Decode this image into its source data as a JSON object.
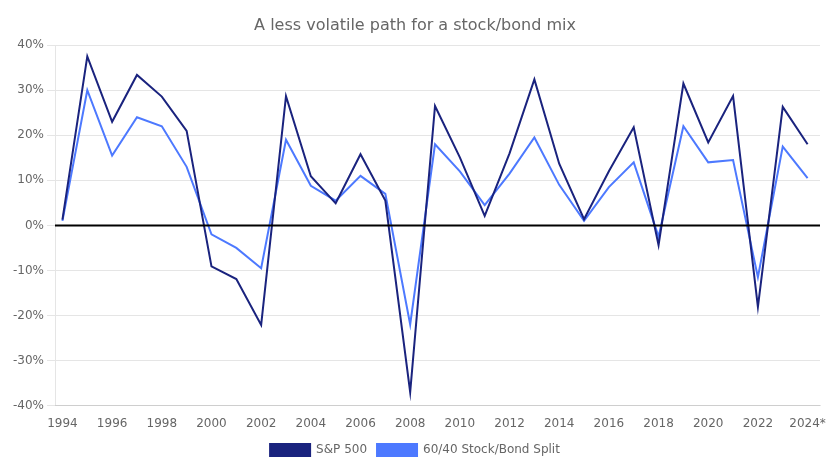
{
  "chart_data": {
    "type": "line",
    "title": "A less volatile path for a stock/bond mix",
    "x": [
      1994,
      1995,
      1996,
      1997,
      1998,
      1999,
      2000,
      2001,
      2002,
      2003,
      2004,
      2005,
      2006,
      2007,
      2008,
      2009,
      2010,
      2011,
      2012,
      2013,
      2014,
      2015,
      2016,
      2017,
      2018,
      2019,
      2020,
      2021,
      2022,
      2023,
      2024
    ],
    "series": [
      {
        "name": "S&P 500",
        "color": "#1a237e",
        "values": [
          1.3,
          37.5,
          23.0,
          33.4,
          28.6,
          21.0,
          -9.1,
          -11.9,
          -22.1,
          28.7,
          10.9,
          4.9,
          15.8,
          5.5,
          -37.0,
          26.5,
          15.1,
          2.1,
          16.0,
          32.4,
          13.7,
          1.4,
          12.0,
          21.8,
          -4.4,
          31.5,
          18.4,
          28.7,
          -18.1,
          26.3,
          18.0
        ]
      },
      {
        "name": "60/40 Stock/Bond Split",
        "color": "#4d79ff",
        "values": [
          1.0,
          30.0,
          15.5,
          24.0,
          22.0,
          13.0,
          -2.0,
          -5.0,
          -9.5,
          19.0,
          8.8,
          5.5,
          11.0,
          7.0,
          -22.0,
          18.0,
          12.0,
          4.5,
          11.5,
          19.5,
          9.0,
          1.0,
          8.5,
          14.0,
          -2.5,
          22.0,
          14.0,
          14.5,
          -11.5,
          17.5,
          10.5
        ]
      }
    ],
    "hline": {
      "value": 0,
      "color": "#000000"
    },
    "xlim": [
      1993.7,
      2024.5
    ],
    "xticks": [
      1994,
      1996,
      1998,
      2000,
      2002,
      2004,
      2006,
      2008,
      2010,
      2012,
      2014,
      2016,
      2018,
      2020,
      2022,
      {
        "value": 2024,
        "label": "2024*"
      }
    ],
    "ylim": [
      -40,
      40
    ],
    "yticks": [
      {
        "value": -40,
        "label": "-40%"
      },
      {
        "value": -30,
        "label": "-30%"
      },
      {
        "value": -20,
        "label": "-20%"
      },
      {
        "value": -10,
        "label": "-10%"
      },
      {
        "value": 0,
        "label": "0%"
      },
      {
        "value": 10,
        "label": "10%"
      },
      {
        "value": 20,
        "label": "20%"
      },
      {
        "value": 30,
        "label": "30%"
      },
      {
        "value": 40,
        "label": "40%"
      }
    ],
    "grid": "y",
    "legend": "bottom"
  }
}
